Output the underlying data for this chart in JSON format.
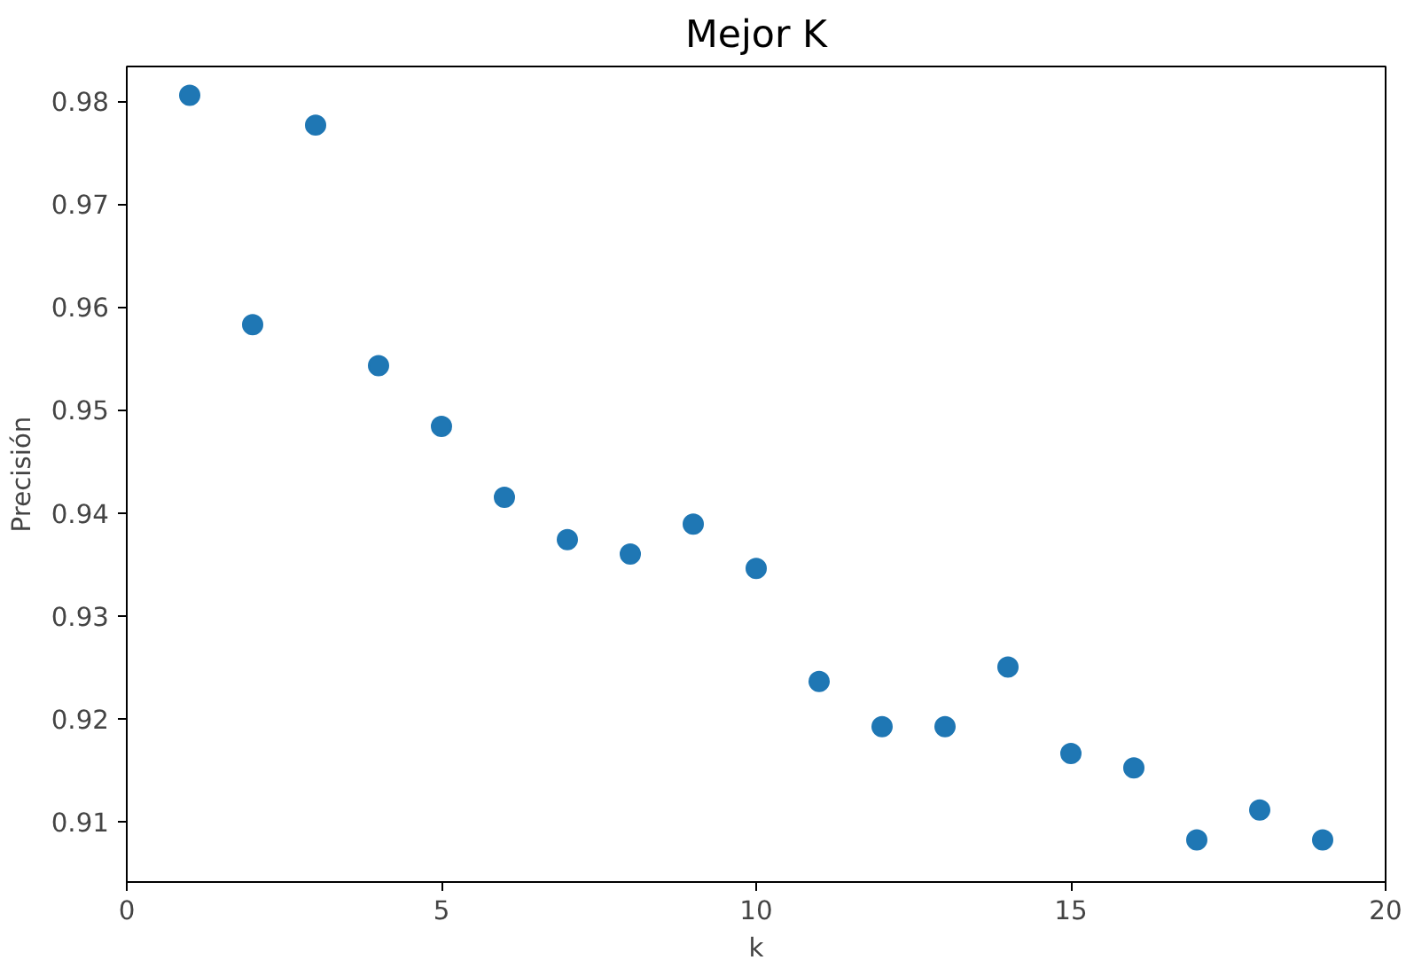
{
  "chart_data": {
    "type": "scatter",
    "title": "Mejor K",
    "xlabel": "k",
    "ylabel": "Precisión",
    "x": [
      1,
      2,
      3,
      4,
      5,
      6,
      7,
      8,
      9,
      10,
      11,
      12,
      13,
      14,
      15,
      16,
      17,
      18,
      19
    ],
    "series": [
      {
        "color": "#1f77b4",
        "values": [
          0.9806,
          0.9583,
          0.9777,
          0.9543,
          0.9484,
          0.9415,
          0.9374,
          0.936,
          0.9389,
          0.9346,
          0.9236,
          0.9192,
          0.9192,
          0.925,
          0.9166,
          0.9152,
          0.9082,
          0.9111,
          0.9082
        ]
      }
    ],
    "xlim": [
      0,
      20
    ],
    "xticks": [
      0,
      5,
      10,
      15,
      20
    ],
    "ylim": [
      0.9041,
      0.9834
    ],
    "yticks": [
      {
        "value": 0.91,
        "label": "0.91"
      },
      {
        "value": 0.92,
        "label": "0.92"
      },
      {
        "value": 0.93,
        "label": "0.93"
      },
      {
        "value": 0.94,
        "label": "0.94"
      },
      {
        "value": 0.95,
        "label": "0.95"
      },
      {
        "value": 0.96,
        "label": "0.96"
      },
      {
        "value": 0.97,
        "label": "0.97"
      },
      {
        "value": 0.98,
        "label": "0.98"
      }
    ],
    "grid": false,
    "marker": "circle"
  }
}
